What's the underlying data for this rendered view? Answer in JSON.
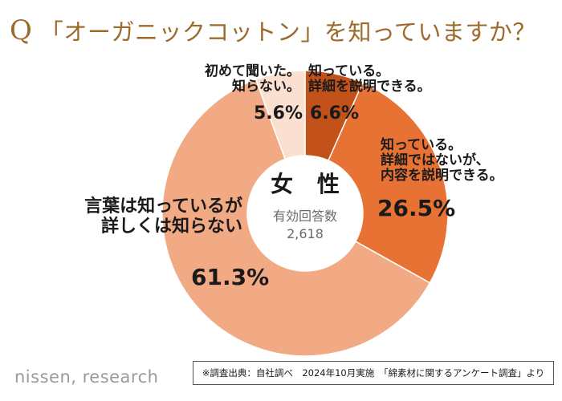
{
  "title": {
    "q_mark": "Q",
    "text": "「オーガニックコットン」を知っていますか？"
  },
  "chart_data": {
    "type": "donut",
    "title": "「オーガニックコットン」を知っていますか？",
    "center": {
      "label": "女 性",
      "caption": "有効回答数",
      "n": "2,618"
    },
    "slices": [
      {
        "name": "知っている。詳細を説明できる。",
        "lines": [
          "知っている。",
          "詳細を説明できる。"
        ],
        "value": 6.6,
        "value_label": "6.6%",
        "color": "#c2521a"
      },
      {
        "name": "知っている。詳細ではないが、内容を説明できる。",
        "lines": [
          "知っている。",
          "詳細ではないが、",
          "内容を説明できる。"
        ],
        "value": 26.5,
        "value_label": "26.5%",
        "color": "#e87233"
      },
      {
        "name": "言葉は知っているが詳しくは知らない",
        "lines": [
          "言葉は知っているが",
          "詳しくは知らない"
        ],
        "value": 61.3,
        "value_label": "61.3%",
        "color": "#f2aa84"
      },
      {
        "name": "初めて聞いた。知らない。",
        "lines": [
          "初めて聞いた。",
          "知らない。"
        ],
        "value": 5.6,
        "value_label": "5.6%",
        "color": "#fbe0d1"
      }
    ]
  },
  "footer": {
    "logo": "nissen, research",
    "source": "※調査出典：自社調べ　2024年10月実施　「綿素材に関するアンケート調査」より"
  }
}
